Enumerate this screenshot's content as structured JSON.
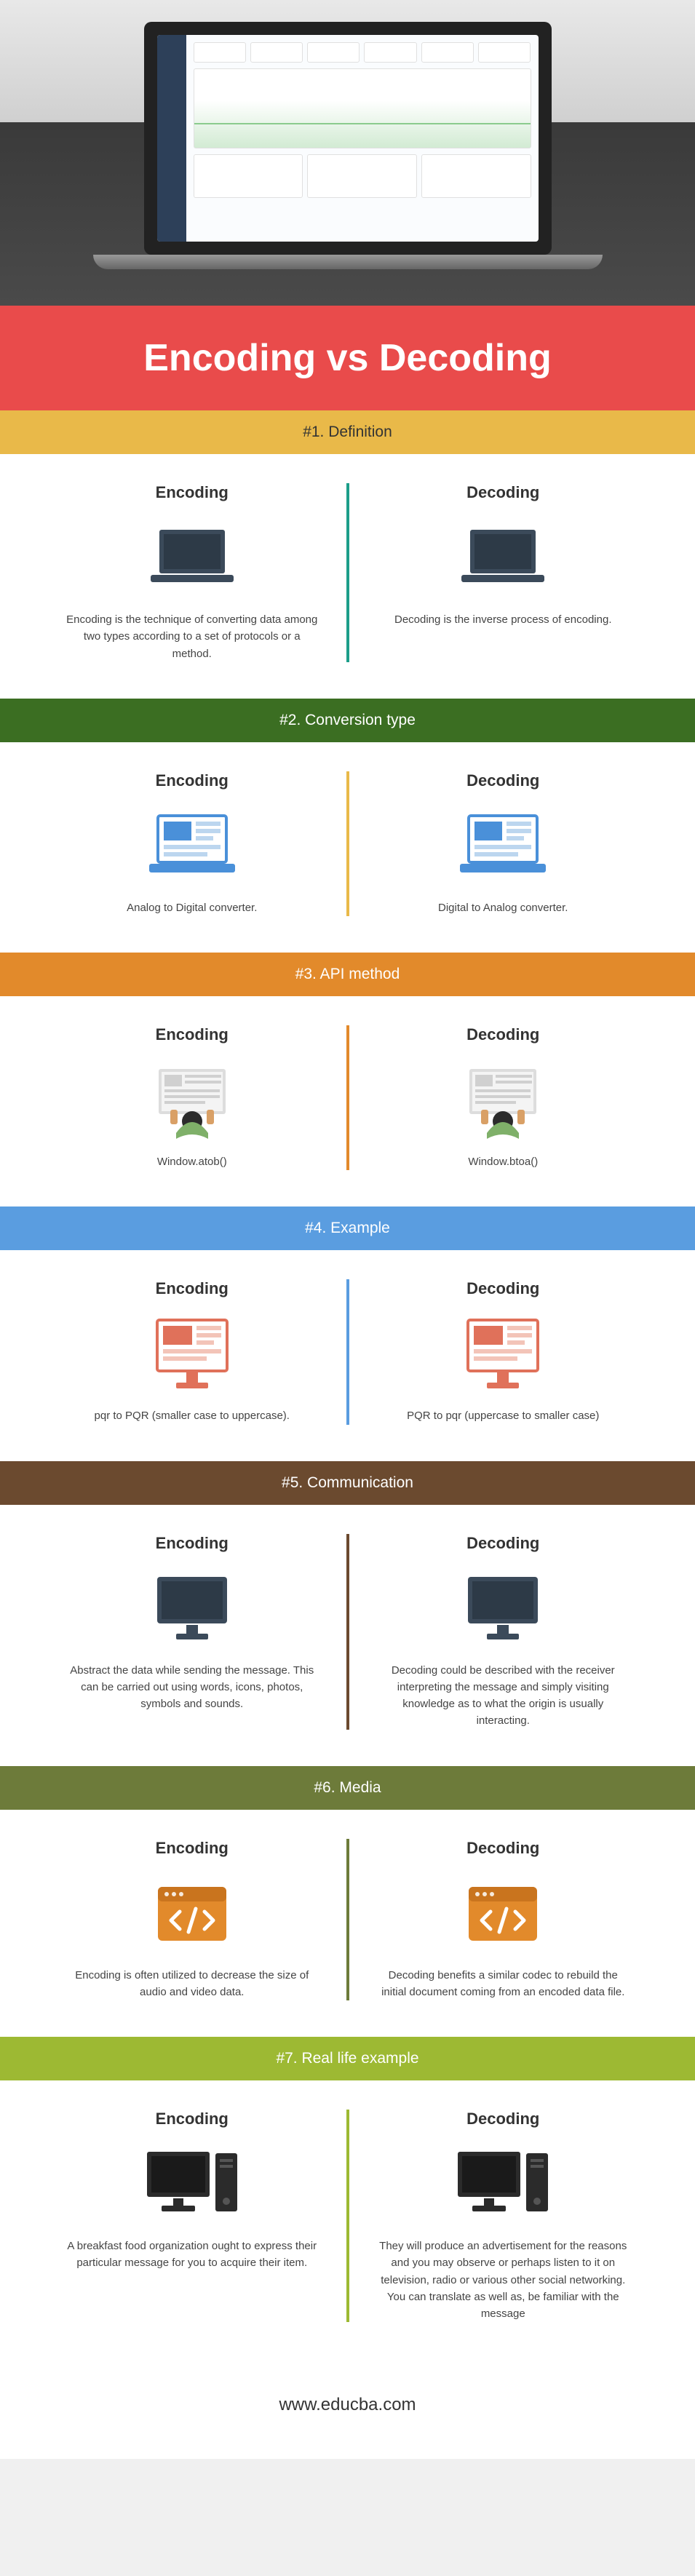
{
  "page_title": "Encoding vs Decoding",
  "title_bar_color": "#e94b4b",
  "footer": "www.educba.com",
  "col_labels": {
    "left": "Encoding",
    "right": "Decoding"
  },
  "sections": [
    {
      "header": "#1. Definition",
      "header_color": "#e9b949",
      "divider_color": "#1c9e8a",
      "icon": "laptop-dark",
      "left": "Encoding is the technique of converting data among two types according to a set of protocols or a method.",
      "right": "Decoding is the inverse process of encoding."
    },
    {
      "header": "#2. Conversion type",
      "header_color": "#3b6e22",
      "divider_color": "#e9b949",
      "icon": "laptop-ui",
      "left": "Analog to Digital converter.",
      "right": "Digital to Analog converter."
    },
    {
      "header": "#3. API method",
      "header_color": "#e28a2b",
      "divider_color": "#e28a2b",
      "icon": "person-top",
      "left": "Window.atob()",
      "right": "Window.btoa()"
    },
    {
      "header": "#4. Example",
      "header_color": "#5a9de0",
      "divider_color": "#5a9de0",
      "icon": "monitor-ui",
      "left": "pqr to PQR (smaller case to uppercase).",
      "right": "PQR to pqr (uppercase to smaller case)"
    },
    {
      "header": "#5. Communication",
      "header_color": "#6b4a2f",
      "divider_color": "#6b4a2f",
      "icon": "monitor-dark",
      "left": "Abstract the data while sending the message. This can be carried out using words, icons, photos, symbols and sounds.",
      "right": "Decoding could be described with the receiver interpreting the message and simply visiting knowledge as to what the origin is usually interacting."
    },
    {
      "header": "#6. Media",
      "header_color": "#6d7b3a",
      "divider_color": "#6d7b3a",
      "icon": "code-box",
      "left": "Encoding is often utilized to decrease the size of audio and video data.",
      "right": "Decoding benefits a similar codec to rebuild the initial document coming from an encoded data file."
    },
    {
      "header": "#7. Real life example",
      "header_color": "#9db933",
      "divider_color": "#9db933",
      "icon": "desktop-pc",
      "left": "A breakfast food organization ought to express their particular message for you to acquire their item.",
      "right": "They will produce an advertisement for the reasons and you may observe or perhaps listen to it on television, radio or various other social networking. You can translate as well as, be familiar with the message"
    }
  ]
}
